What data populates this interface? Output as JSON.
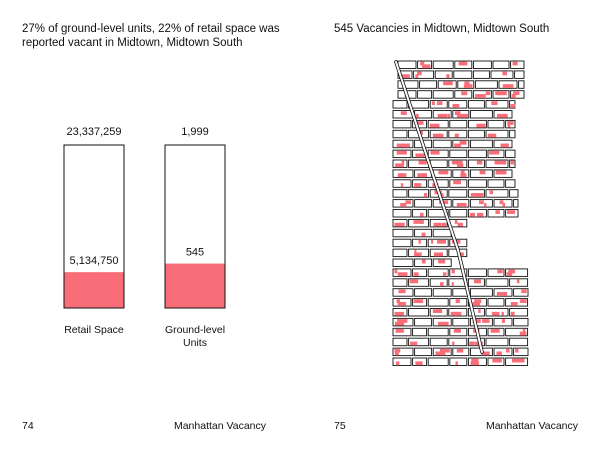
{
  "left_page": {
    "headline": "27% of ground-level units, 22% of retail space was reported vacant in Midtown, Midtown South",
    "page_number": "74",
    "running_title": "Manhattan Vacancy"
  },
  "right_page": {
    "headline": "545 Vacancies in Midtown, Midtown South",
    "page_number": "75",
    "running_title": "Manhattan Vacancy"
  },
  "colors": {
    "vacant_fill": "#fa6e79",
    "outline": "#111111",
    "block_fill": "#ffffff"
  },
  "chart_data": [
    {
      "type": "bar",
      "layout": "stacked proportion bars",
      "categories": [
        "Retail Space",
        "Ground-level Units"
      ],
      "series": [
        {
          "values": [
            5134750,
            545
          ]
        },
        {
          "values": [
            23337259,
            1999
          ]
        }
      ],
      "value_labels": {
        "total": [
          "23,337,259",
          "1,999"
        ],
        "vacant": [
          "5,134,750",
          "545"
        ]
      }
    },
    {
      "type": "other",
      "description_kind": "map of Midtown, Midtown South blocks with vacant units highlighted",
      "vacancy_count": 545
    }
  ]
}
